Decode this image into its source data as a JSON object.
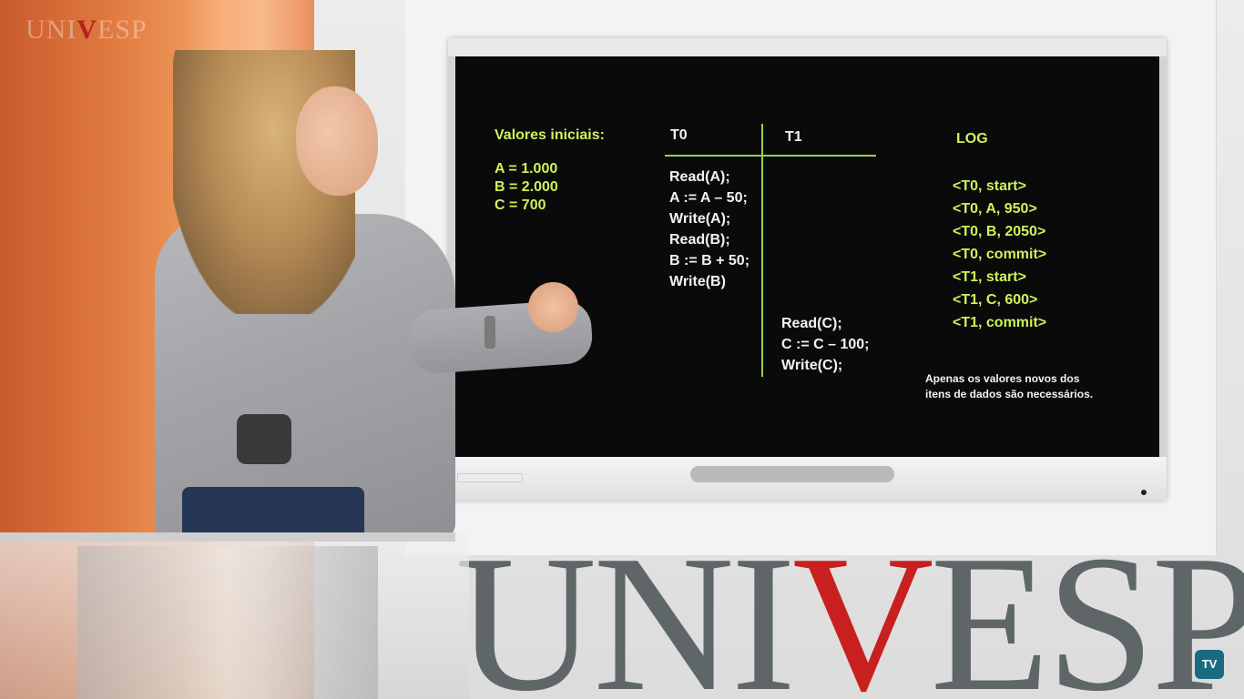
{
  "brand": {
    "corner_logo_left": "UNI",
    "corner_logo_v": "V",
    "corner_logo_right": "ESP",
    "wall_logo_left": "UNI",
    "wall_logo_v": "V",
    "wall_logo_right": "ESP",
    "tv_badge": "TV"
  },
  "slide": {
    "initial_title": "Valores iniciais:",
    "initial_values": [
      "A = 1.000",
      "B = 2.000",
      "C = 700"
    ],
    "t0_header": "T0",
    "t1_header": "T1",
    "t0_ops": [
      "Read(A);",
      "A := A – 50;",
      "Write(A);",
      "Read(B);",
      "B := B + 50;",
      "Write(B)"
    ],
    "t1_ops": [
      "Read(C);",
      "C := C – 100;",
      "Write(C);"
    ],
    "log_title": "LOG",
    "log_entries": [
      "<T0, start>",
      "<T0, A, 950>",
      "<T0, B, 2050>",
      "<T0, commit>",
      "<T1, start>",
      "<T1, C, 600>",
      "<T1, commit>"
    ],
    "note_line1": "Apenas os valores novos dos",
    "note_line2": "itens de dados são necessários."
  },
  "colors": {
    "slide_green": "#cdf25a",
    "slide_white": "#f2f2f2",
    "brand_red": "#c8201e",
    "brand_gray": "#5f6668"
  }
}
